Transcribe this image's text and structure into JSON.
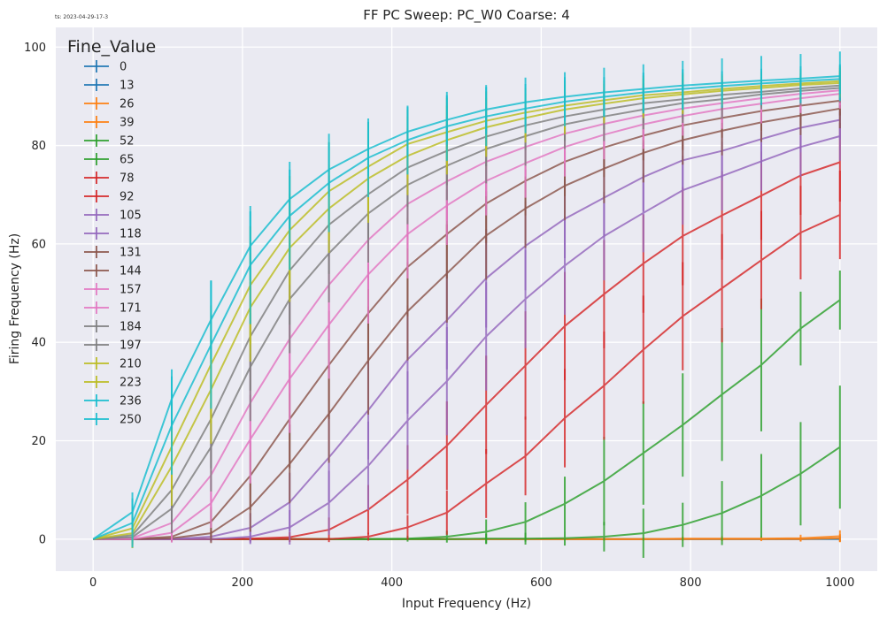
{
  "timestamp": "ts: 2023-04-29-17-3",
  "chart_data": {
    "type": "line",
    "title": "FF PC Sweep: PC_W0 Coarse: 4",
    "xlabel": "Input Frequency (Hz)",
    "ylabel": "Firing Frequency (Hz)",
    "xlim": [
      -50,
      1050
    ],
    "ylim": [
      -6.5,
      104
    ],
    "xticks": [
      0,
      200,
      400,
      600,
      800,
      1000
    ],
    "yticks": [
      0,
      20,
      40,
      60,
      80,
      100
    ],
    "grid": true,
    "error_bars": true,
    "legend": {
      "title": "Fine_Value",
      "placement": "top-left"
    },
    "x": [
      0,
      52.6,
      105.3,
      157.9,
      210.5,
      263.2,
      315.8,
      368.4,
      421.1,
      473.7,
      526.3,
      578.9,
      631.6,
      684.2,
      736.8,
      789.5,
      842.1,
      894.7,
      947.4,
      1000
    ],
    "series": [
      {
        "name": "0",
        "color": "#1f77b4",
        "values": [
          0,
          0,
          0,
          0,
          0,
          0,
          0,
          0,
          0,
          0,
          0,
          0,
          0,
          0,
          0,
          0,
          0,
          0,
          0,
          0
        ],
        "err": [
          0,
          0,
          0,
          0,
          0,
          0,
          0,
          0,
          0,
          0,
          0,
          0,
          0,
          0,
          0,
          0,
          0,
          0,
          0,
          0
        ]
      },
      {
        "name": "13",
        "color": "#1f77b4",
        "values": [
          0,
          0,
          0,
          0,
          0,
          0,
          0,
          0,
          0,
          0,
          0,
          0,
          0,
          0,
          0,
          0,
          0,
          0,
          0,
          0.1
        ],
        "err": [
          0,
          0,
          0,
          0,
          0,
          0,
          0,
          0,
          0,
          0,
          0,
          0,
          0,
          0,
          0,
          0,
          0,
          0,
          0,
          0.5
        ]
      },
      {
        "name": "26",
        "color": "#ff7f0e",
        "values": [
          0,
          0,
          0,
          0,
          0,
          0,
          0,
          0,
          0,
          0,
          0,
          0,
          0,
          0,
          0,
          0,
          0,
          0,
          0,
          0.2
        ],
        "err": [
          0,
          0,
          0,
          0,
          0,
          0,
          0,
          0,
          0,
          0,
          0,
          0,
          0,
          0,
          0,
          0,
          0,
          0,
          0.4,
          0.8
        ]
      },
      {
        "name": "39",
        "color": "#ff7f0e",
        "values": [
          0,
          0,
          0,
          0,
          0,
          0,
          0,
          0,
          0,
          0,
          0,
          0,
          0,
          0,
          0,
          0.1,
          0.1,
          0.1,
          0.2,
          0.6
        ],
        "err": [
          0,
          0,
          0,
          0,
          0,
          0,
          0,
          0,
          0,
          0,
          0,
          0.2,
          0.2,
          0.3,
          0.3,
          0.4,
          0.5,
          0.5,
          0.7,
          1.2
        ]
      },
      {
        "name": "52",
        "color": "#2ca02c",
        "values": [
          0,
          0,
          0,
          0,
          0,
          0,
          0,
          0,
          0,
          0,
          0.1,
          0.1,
          0.2,
          0.5,
          1.2,
          2.9,
          5.3,
          8.8,
          13.3,
          18.7
        ],
        "err": [
          0,
          0,
          0,
          0,
          0,
          0,
          0,
          0,
          0,
          0,
          1,
          1.2,
          1.5,
          3,
          5,
          4.5,
          6.5,
          8.5,
          10.5,
          12.5
        ]
      },
      {
        "name": "65",
        "color": "#2ca02c",
        "values": [
          0,
          0,
          0,
          0,
          0,
          0,
          0,
          0,
          0.1,
          0.5,
          1.5,
          3.5,
          7.2,
          11.8,
          17.5,
          23.2,
          29.4,
          35.4,
          42.8,
          48.6
        ],
        "err": [
          0,
          0,
          0,
          0,
          0,
          0,
          0,
          0,
          0.6,
          1.2,
          2.5,
          4,
          5.5,
          9,
          10.5,
          10.5,
          13.5,
          13.5,
          7.5,
          6
        ]
      },
      {
        "name": "78",
        "color": "#d62728",
        "values": [
          0,
          0,
          0,
          0,
          0,
          0,
          0,
          0.5,
          2.4,
          5.4,
          11.3,
          16.9,
          24.6,
          31.2,
          38.5,
          45.3,
          51,
          56.7,
          62.3,
          65.9
        ],
        "err": [
          0,
          0,
          0,
          0,
          0,
          0,
          0,
          0.8,
          2.5,
          4.5,
          7,
          8,
          10,
          11,
          11,
          11,
          11,
          10,
          9.5,
          9
        ]
      },
      {
        "name": "92",
        "color": "#d62728",
        "values": [
          0,
          0,
          0,
          0,
          0.1,
          0.4,
          1.9,
          6,
          12.1,
          19,
          27.3,
          35.3,
          43.3,
          49.8,
          56,
          61.6,
          65.8,
          69.8,
          73.9,
          76.6
        ],
        "err": [
          0,
          0,
          0,
          0,
          0.5,
          1,
          2.5,
          5,
          7,
          9,
          10,
          11,
          11,
          11,
          10,
          10,
          9,
          9,
          8,
          8
        ]
      },
      {
        "name": "105",
        "color": "#9467bd",
        "values": [
          0,
          0,
          0,
          0,
          0.5,
          2.4,
          7.4,
          14.9,
          24.1,
          32.1,
          41.2,
          48.8,
          55.6,
          61.6,
          66.3,
          70.9,
          73.8,
          76.8,
          79.7,
          81.9
        ],
        "err": [
          0,
          0,
          0,
          0.5,
          1.5,
          3.5,
          6.5,
          9,
          10,
          11,
          11,
          10,
          10,
          9,
          8,
          7,
          7,
          6,
          6,
          5
        ]
      },
      {
        "name": "118",
        "color": "#9467bd",
        "values": [
          0,
          0,
          0,
          0.5,
          2.3,
          7.5,
          16.6,
          26.2,
          36.5,
          44.5,
          53,
          59.6,
          65.1,
          69.4,
          73.6,
          77,
          78.9,
          81.3,
          83.6,
          85.2
        ],
        "err": [
          0,
          0,
          0,
          1,
          3,
          6,
          9,
          10,
          11,
          10,
          10,
          9,
          8,
          8,
          7,
          6,
          6,
          5,
          5,
          4
        ]
      },
      {
        "name": "131",
        "color": "#8c564b",
        "values": [
          0,
          0,
          0.2,
          1.2,
          6.5,
          15.3,
          25.5,
          36.3,
          46.3,
          54,
          61.7,
          67.2,
          71.8,
          75.3,
          78.5,
          81.1,
          83,
          84.7,
          86.1,
          87.5
        ],
        "err": [
          0,
          0,
          0.5,
          2,
          5,
          8,
          10,
          11,
          10,
          10,
          9,
          8,
          7,
          7,
          6,
          5,
          5,
          4,
          4,
          4
        ]
      },
      {
        "name": "144",
        "color": "#8c564b",
        "values": [
          0,
          0,
          0.5,
          3.5,
          12.9,
          24.4,
          35.4,
          45.9,
          55.3,
          62,
          68.2,
          72.8,
          76.7,
          79.6,
          82,
          84.1,
          85.6,
          87,
          88.1,
          89.1
        ],
        "err": [
          0,
          0,
          1,
          3,
          7,
          10,
          11,
          10,
          10,
          9,
          8,
          7,
          7,
          6,
          5,
          5,
          4,
          4,
          4,
          3
        ]
      },
      {
        "name": "157",
        "color": "#e377c2",
        "values": [
          0,
          0,
          1.3,
          7.3,
          20.3,
          32.6,
          43.6,
          53.8,
          62,
          67.8,
          72.8,
          76.4,
          79.7,
          82.2,
          84.3,
          86,
          87.4,
          88.5,
          89.6,
          90.5
        ],
        "err": [
          0,
          0.5,
          2,
          5,
          9,
          11,
          11,
          10,
          9,
          8,
          7,
          7,
          6,
          5,
          5,
          4,
          4,
          4,
          3,
          3
        ]
      },
      {
        "name": "171",
        "color": "#e377c2",
        "values": [
          0,
          0.2,
          3.3,
          13,
          27.7,
          40.7,
          51.7,
          60.8,
          68.1,
          72.7,
          76.7,
          79.7,
          82.4,
          84.4,
          86.1,
          87.5,
          88.6,
          89.6,
          90.5,
          91.2
        ],
        "err": [
          0,
          1,
          3.5,
          7,
          10,
          11,
          11,
          10,
          9,
          8,
          7,
          6,
          6,
          5,
          5,
          4,
          4,
          3,
          3,
          3
        ]
      },
      {
        "name": "184",
        "color": "#7f7f7f",
        "values": [
          0,
          0.4,
          6.2,
          18.7,
          35,
          48.8,
          58.1,
          66.2,
          72,
          75.9,
          79.3,
          81.9,
          84.3,
          85.9,
          87.3,
          88.6,
          89.4,
          90.4,
          91.1,
          91.7
        ],
        "err": [
          0,
          1.5,
          5,
          9,
          11,
          11,
          10,
          10,
          8,
          7,
          7,
          6,
          5,
          5,
          4,
          4,
          4,
          3,
          3,
          3
        ]
      },
      {
        "name": "197",
        "color": "#7f7f7f",
        "values": [
          0,
          0.8,
          10,
          24.4,
          41.2,
          54.6,
          63.9,
          70.1,
          75.5,
          78.9,
          81.8,
          84.1,
          85.9,
          87.3,
          88.6,
          89.4,
          90.3,
          90.9,
          91.6,
          92.2
        ],
        "err": [
          0,
          2,
          7,
          10,
          11,
          11,
          10,
          9,
          8,
          7,
          6,
          5,
          5,
          4,
          4,
          4,
          3,
          3,
          3,
          3
        ]
      },
      {
        "name": "210",
        "color": "#bcbd22",
        "values": [
          0,
          1.2,
          14.8,
          30.4,
          47.1,
          59.2,
          67.2,
          73.3,
          77.9,
          81.1,
          83.7,
          85.6,
          87.3,
          88.5,
          89.6,
          90.4,
          91.1,
          91.7,
          92.3,
          92.7
        ],
        "err": [
          0,
          3,
          8,
          11,
          11,
          11,
          9,
          9,
          8,
          7,
          6,
          5,
          5,
          4,
          4,
          4,
          3,
          3,
          3,
          3
        ]
      },
      {
        "name": "223",
        "color": "#bcbd22",
        "values": [
          0,
          2.2,
          18.8,
          35.5,
          51.6,
          62.8,
          70.7,
          75.7,
          80.3,
          82.7,
          85,
          86.7,
          88.1,
          89.2,
          90.2,
          90.8,
          91.5,
          92.1,
          92.6,
          93.1
        ],
        "err": [
          0,
          4,
          9,
          12,
          12,
          11,
          10,
          9,
          7,
          7,
          6,
          5,
          5,
          4,
          4,
          4,
          3,
          3,
          3,
          3
        ]
      },
      {
        "name": "236",
        "color": "#17becf",
        "values": [
          0,
          3.3,
          23.1,
          39.5,
          55.7,
          65.7,
          72.4,
          77.5,
          81.1,
          83.9,
          85.9,
          87.5,
          88.9,
          89.9,
          90.8,
          91.5,
          92.1,
          92.6,
          93.1,
          93.5
        ],
        "err": [
          0,
          5,
          10,
          13,
          12,
          11,
          10,
          8,
          7,
          7,
          6,
          5,
          5,
          4,
          4,
          4,
          3,
          3,
          3,
          3
        ]
      },
      {
        "name": "250",
        "color": "#17becf",
        "values": [
          0,
          5.5,
          28.5,
          44.6,
          59.6,
          69.1,
          75.1,
          79.3,
          82.8,
          85.2,
          87.3,
          88.8,
          89.9,
          90.8,
          91.5,
          92.2,
          92.7,
          93.2,
          93.6,
          94.1
        ],
        "err": [
          0,
          4,
          6,
          8,
          7,
          6,
          5.5,
          5.5,
          5,
          5,
          5,
          5,
          5,
          5,
          5,
          5,
          5,
          5,
          5,
          5
        ]
      }
    ]
  }
}
